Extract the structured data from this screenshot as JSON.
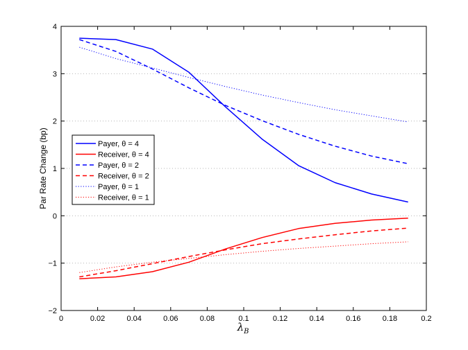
{
  "chart_data": {
    "type": "line",
    "xlabel": "λ",
    "xlabel_subscript": "B",
    "ylabel": "Par Rate Change (bp)",
    "xlim": [
      0,
      0.2
    ],
    "ylim": [
      -2,
      4
    ],
    "xticks": [
      0,
      0.02,
      0.04,
      0.06,
      0.08,
      0.1,
      0.12,
      0.14,
      0.16,
      0.18,
      0.2
    ],
    "xtick_labels": [
      "0",
      "0.02",
      "0.04",
      "0.06",
      "0.08",
      "0.1",
      "0.12",
      "0.14",
      "0.16",
      "0.18",
      "0.2"
    ],
    "yticks": [
      -2,
      -1,
      0,
      1,
      2,
      3,
      4
    ],
    "ytick_labels": [
      "−2",
      "−1",
      "0",
      "1",
      "2",
      "3",
      "4"
    ],
    "grid": "horizontal dotted",
    "legend_position": "left",
    "x": [
      0.01,
      0.03,
      0.05,
      0.07,
      0.09,
      0.11,
      0.13,
      0.15,
      0.17,
      0.19
    ],
    "series": [
      {
        "name": "Payer, θ = 4",
        "color": "#0000ff",
        "style": "solid",
        "values": [
          3.75,
          3.72,
          3.52,
          3.03,
          2.3,
          1.62,
          1.06,
          0.7,
          0.46,
          0.29
        ]
      },
      {
        "name": "Receiver, θ = 4",
        "color": "#ff0000",
        "style": "solid",
        "values": [
          -1.33,
          -1.29,
          -1.18,
          -0.98,
          -0.7,
          -0.46,
          -0.27,
          -0.16,
          -0.09,
          -0.05
        ]
      },
      {
        "name": "Payer, θ = 2",
        "color": "#0000ff",
        "style": "dashed",
        "values": [
          3.72,
          3.47,
          3.1,
          2.7,
          2.33,
          2.01,
          1.72,
          1.47,
          1.26,
          1.1
        ]
      },
      {
        "name": "Receiver, θ = 2",
        "color": "#ff0000",
        "style": "dashed",
        "values": [
          -1.29,
          -1.16,
          -1.01,
          -0.86,
          -0.72,
          -0.59,
          -0.49,
          -0.4,
          -0.32,
          -0.26
        ]
      },
      {
        "name": "Payer, θ = 1",
        "color": "#0000ff",
        "style": "dotted",
        "values": [
          3.56,
          3.32,
          3.12,
          2.92,
          2.73,
          2.55,
          2.39,
          2.24,
          2.11,
          1.98
        ]
      },
      {
        "name": "Receiver, θ = 1",
        "color": "#ff0000",
        "style": "dotted",
        "values": [
          -1.2,
          -1.08,
          -0.98,
          -0.9,
          -0.82,
          -0.75,
          -0.69,
          -0.64,
          -0.59,
          -0.55
        ]
      }
    ]
  }
}
